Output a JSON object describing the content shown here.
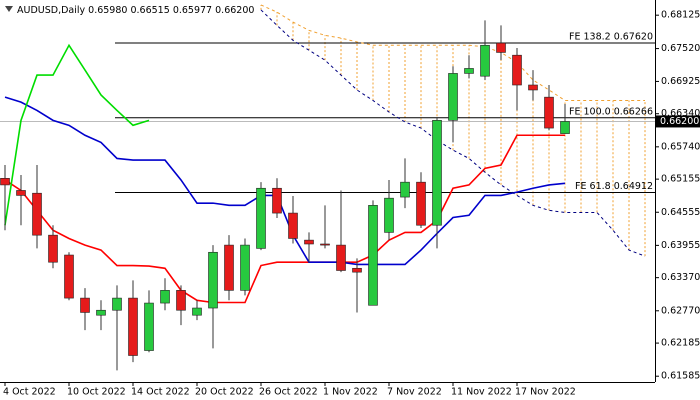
{
  "chart_data": {
    "type": "candlestick",
    "title": "AUDUSD,Daily",
    "header_values": [
      "0.65980",
      "0.66515",
      "0.65977",
      "0.66200"
    ],
    "categories": [
      "4 Oct 2022",
      null,
      null,
      null,
      "10 Oct 2022",
      null,
      null,
      null,
      "14 Oct 2022",
      null,
      null,
      null,
      "20 Oct 2022",
      null,
      null,
      null,
      "26 Oct 2022",
      null,
      null,
      null,
      "1 Nov 2022",
      null,
      null,
      null,
      "7 Nov 2022",
      null,
      null,
      null,
      "11 Nov 2022",
      null,
      null,
      null,
      "17 Nov 2022",
      null,
      null,
      null,
      null,
      null,
      null,
      null,
      null
    ],
    "open": [
      0.6517,
      0.6495,
      0.649,
      0.6414,
      0.6378,
      0.63,
      0.6269,
      0.6278,
      0.63,
      0.6205,
      0.6291,
      0.6314,
      0.6269,
      0.6282,
      0.6396,
      0.6314,
      0.639,
      0.6499,
      0.6454,
      0.6405,
      0.6398,
      0.6396,
      0.6354,
      0.6287,
      0.6419,
      0.6483,
      0.651,
      0.6432,
      0.6622,
      0.6707,
      0.6702,
      0.6762,
      0.674,
      0.6686,
      0.6664,
      0.6598,
      null,
      null,
      null,
      null,
      null
    ],
    "high": [
      0.6541,
      0.6523,
      0.6541,
      0.6432,
      0.6383,
      0.6318,
      0.6296,
      0.6323,
      0.6332,
      0.6314,
      0.6336,
      0.6323,
      0.6296,
      0.6396,
      0.6414,
      0.6408,
      0.651,
      0.6517,
      0.6485,
      0.6419,
      0.6468,
      0.6495,
      0.6372,
      0.6477,
      0.6514,
      0.6553,
      0.6528,
      0.6626,
      0.672,
      0.674,
      0.6803,
      0.6794,
      0.6753,
      0.6713,
      0.6686,
      0.66515,
      null,
      null,
      null,
      null,
      null
    ],
    "low": [
      0.6423,
      0.6432,
      0.639,
      0.6354,
      0.6296,
      0.6242,
      0.6242,
      0.6169,
      0.6184,
      0.6202,
      0.6278,
      0.6251,
      0.626,
      0.6209,
      0.6296,
      0.6305,
      0.6387,
      0.6445,
      0.6399,
      0.6365,
      0.639,
      0.6347,
      0.6274,
      0.6287,
      0.6405,
      0.6463,
      0.6427,
      0.639,
      0.6582,
      0.6698,
      0.6695,
      0.6731,
      0.664,
      0.6658,
      0.6604,
      0.65977,
      null,
      null,
      null,
      null,
      null
    ],
    "close": [
      0.6505,
      0.6486,
      0.6414,
      0.6365,
      0.63,
      0.6274,
      0.6278,
      0.63,
      0.6196,
      0.6291,
      0.6314,
      0.6278,
      0.6282,
      0.6383,
      0.6314,
      0.6396,
      0.6499,
      0.6454,
      0.6408,
      0.6398,
      0.6396,
      0.635,
      0.6347,
      0.6468,
      0.6481,
      0.651,
      0.6432,
      0.6622,
      0.6707,
      0.6716,
      0.6758,
      0.6745,
      0.6686,
      0.6677,
      0.6608,
      0.662,
      null,
      null,
      null,
      null,
      null
    ],
    "up_color": "#27c93f",
    "down_color": "#e51b1b",
    "series": [
      {
        "color": "#ff0000",
        "style": "solid",
        "values": [
          0.6514,
          0.6495,
          0.6459,
          0.6423,
          0.6408,
          0.6396,
          0.6387,
          0.6359,
          0.6359,
          0.6358,
          0.6354,
          0.6314,
          0.6296,
          0.6292,
          0.6292,
          0.6292,
          0.6359,
          0.6365,
          0.6365,
          0.6365,
          0.6365,
          0.6365,
          0.6365,
          0.6378,
          0.6405,
          0.6419,
          0.6419,
          0.6441,
          0.6499,
          0.6505,
          0.6535,
          0.6541,
          0.6595,
          0.6595,
          0.6595,
          0.6595,
          null,
          null,
          null,
          null,
          null
        ]
      },
      {
        "color": "#0000cc",
        "style": "solid",
        "values": [
          0.6664,
          0.6655,
          0.664,
          0.6622,
          0.6613,
          0.6595,
          0.6582,
          0.6553,
          0.655,
          0.655,
          0.655,
          0.6514,
          0.6472,
          0.6472,
          0.6468,
          0.6468,
          0.6486,
          0.6486,
          0.6414,
          0.6365,
          0.6365,
          0.6365,
          0.6361,
          0.6361,
          0.6361,
          0.6361,
          0.6387,
          0.6417,
          0.6446,
          0.645,
          0.6486,
          0.6486,
          0.6492,
          0.6499,
          0.6505,
          0.6508,
          null,
          null,
          null,
          null,
          null
        ]
      },
      {
        "color": "#00dd00",
        "style": "solid",
        "values": [
          0.6432,
          0.6622,
          0.6704,
          0.6704,
          0.6758,
          0.6713,
          0.6668,
          0.664,
          0.6613,
          0.6622,
          null,
          null,
          null,
          null,
          null,
          null,
          null,
          null,
          null,
          null,
          null,
          null,
          null,
          null,
          null,
          null,
          null,
          null,
          null,
          null,
          null,
          null,
          null,
          null,
          null,
          null,
          null,
          null,
          null,
          null,
          null
        ]
      },
      {
        "color": "#000080",
        "style": "dashed",
        "values": [
          null,
          null,
          null,
          null,
          null,
          null,
          null,
          null,
          null,
          null,
          null,
          null,
          null,
          null,
          null,
          null,
          0.6822,
          0.6794,
          0.6767,
          0.6749,
          0.6731,
          0.6704,
          0.6677,
          0.6658,
          0.6637,
          0.6619,
          0.6608,
          0.6586,
          0.6568,
          0.6553,
          0.6528,
          0.6505,
          0.6486,
          0.6468,
          0.6459,
          0.6455,
          0.6455,
          0.6455,
          0.6423,
          0.6387,
          0.6376
        ]
      },
      {
        "color": "#f0a030",
        "style": "dashed",
        "values": [
          null,
          null,
          null,
          null,
          null,
          null,
          null,
          null,
          null,
          null,
          null,
          null,
          null,
          null,
          null,
          null,
          0.6831,
          0.6818,
          0.68,
          0.6785,
          0.6776,
          0.6771,
          0.6764,
          0.6758,
          0.6758,
          0.6758,
          0.6758,
          0.6758,
          0.6758,
          0.6758,
          0.6755,
          0.6745,
          0.6727,
          0.6695,
          0.6677,
          0.6658,
          0.6658,
          0.6658,
          0.6658,
          0.6658,
          0.6658
        ]
      }
    ],
    "cloud_color": "#f0a030",
    "levels": [
      {
        "label": "FE 138.2 0.67620",
        "value": 0.6762
      },
      {
        "label": "FE 100.0 0.66266",
        "value": 0.66266
      },
      {
        "label": "FE 61.8 0.64912",
        "value": 0.64912
      }
    ],
    "last_price": {
      "value": 0.662,
      "label": "0.66200"
    },
    "ylim": [
      0.6148,
      0.684
    ],
    "yticks": [
      0.68125,
      {
        "value": 0.6752,
        "label": "0.67520"
      },
      0.66925,
      {
        "value": 0.6634,
        "label": "0.66340"
      },
      {
        "value": 0.6574,
        "label": "0.65740"
      },
      0.65155,
      0.64555,
      0.63955,
      {
        "value": 0.6337,
        "label": "0.63370"
      },
      {
        "value": 0.6277,
        "label": "0.62770"
      },
      0.62185,
      0.61585
    ]
  }
}
